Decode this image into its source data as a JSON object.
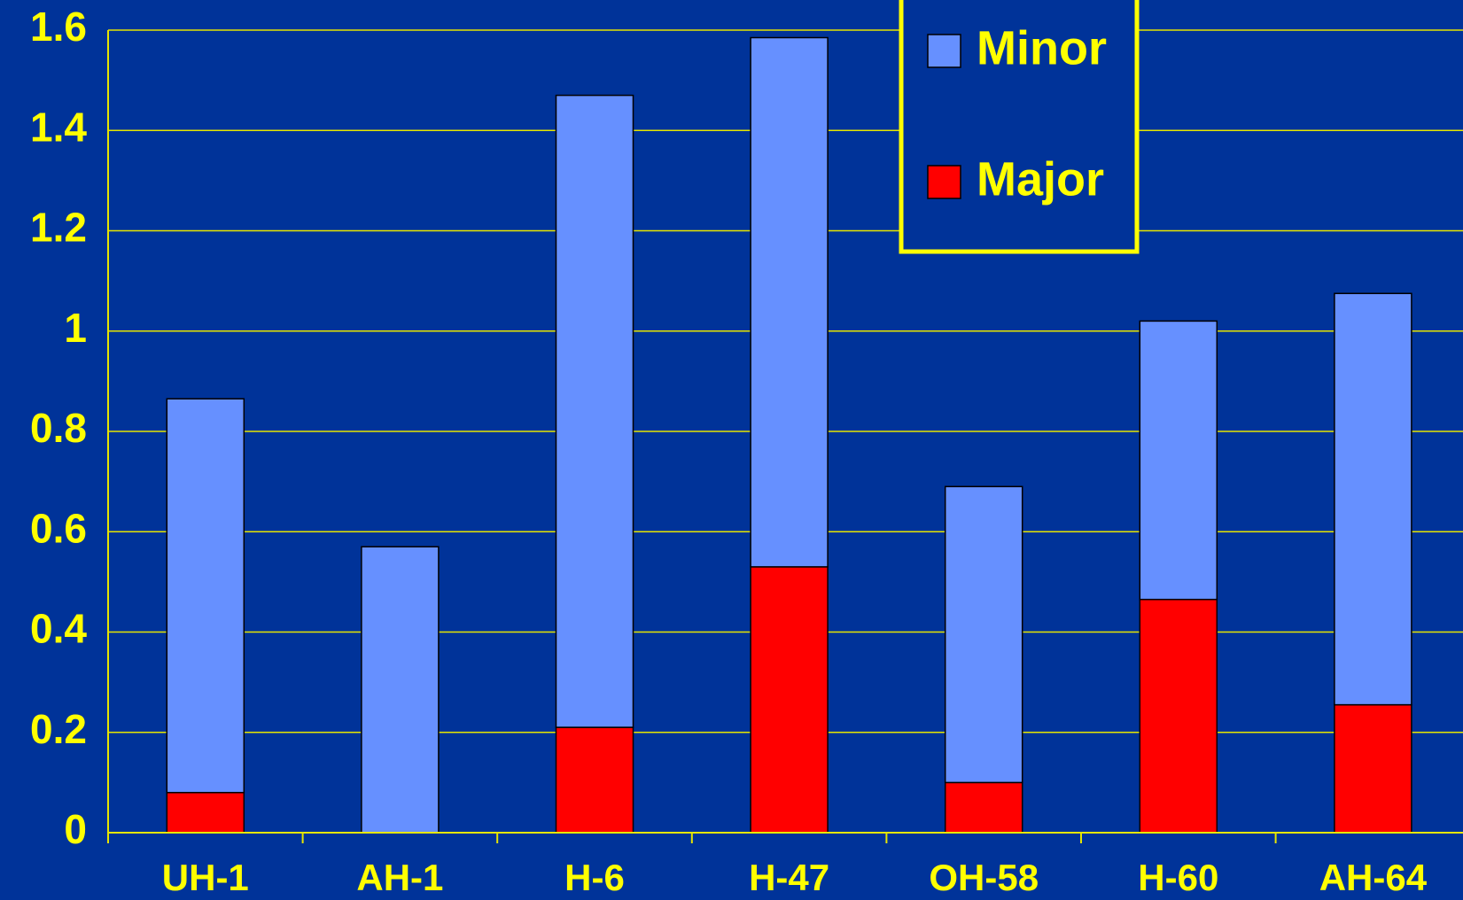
{
  "chart_data": {
    "type": "stacked_bar",
    "categories": [
      "UH-1",
      "AH-1",
      "H-6",
      "H-47",
      "OH-58",
      "H-60",
      "AH-64"
    ],
    "series": [
      {
        "name": "Minor",
        "color": "#6690ff",
        "values": [
          0.785,
          0.57,
          1.26,
          1.055,
          0.59,
          0.555,
          0.82
        ]
      },
      {
        "name": "Major",
        "color": "#ff0000",
        "values": [
          0.08,
          0,
          0.21,
          0.53,
          0.1,
          0.465,
          0.255
        ]
      }
    ],
    "stack_order": [
      1,
      0
    ],
    "ylim": [
      0,
      1.6
    ],
    "yticks": [
      0,
      {
        "value": 0.2,
        "label": "0.2"
      },
      {
        "value": 0.4,
        "label": "0.4"
      },
      {
        "value": 0.6,
        "label": "0.6"
      },
      {
        "value": 0.8,
        "label": "0.8"
      },
      1,
      {
        "value": 1.2,
        "label": "1.2"
      },
      {
        "value": 1.4,
        "label": "1.4"
      },
      {
        "value": 1.6,
        "label": "1.6"
      }
    ],
    "grid": true,
    "legend": "top-right"
  }
}
